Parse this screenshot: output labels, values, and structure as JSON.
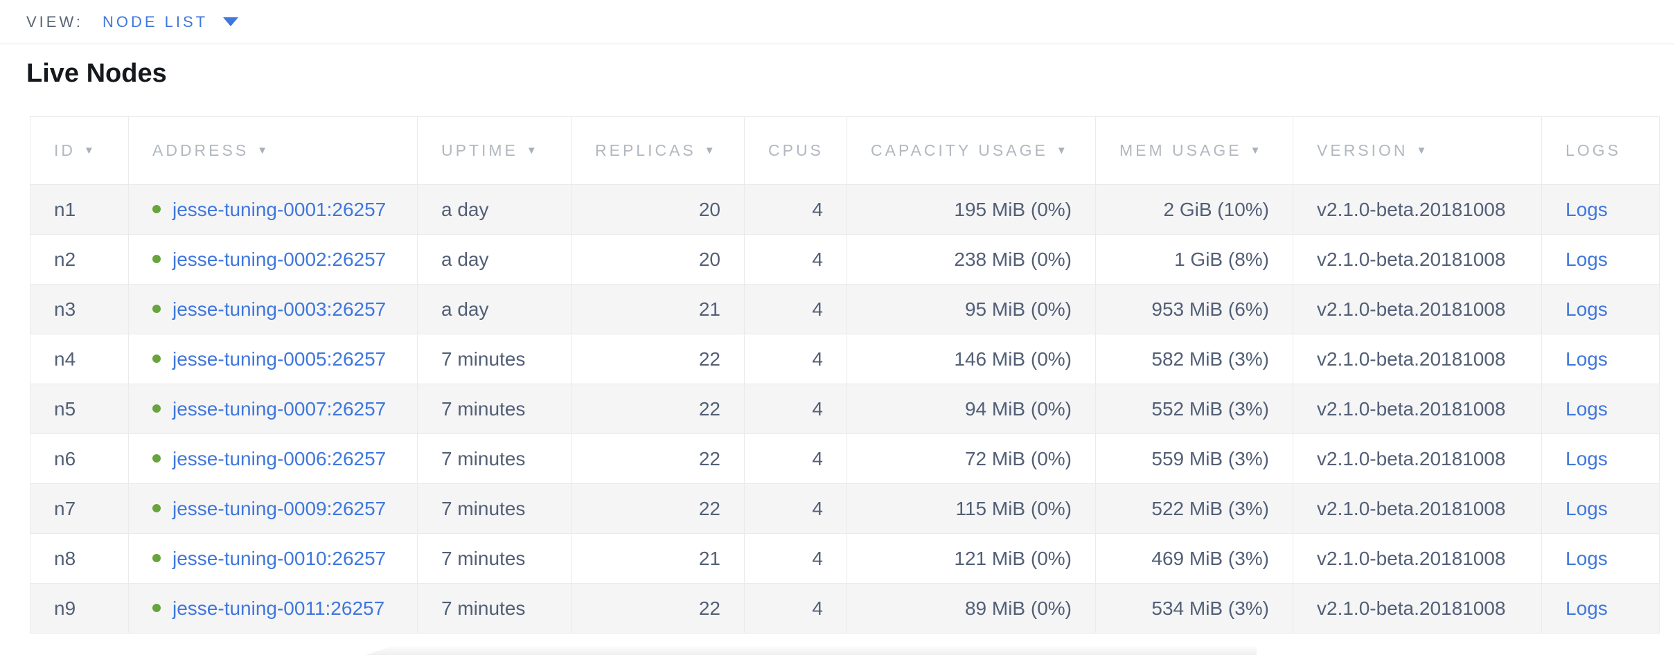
{
  "view_bar": {
    "label": "VIEW:",
    "selected": "NODE LIST"
  },
  "page": {
    "title": "Live Nodes"
  },
  "table": {
    "columns": [
      {
        "label": "ID",
        "sortable": true
      },
      {
        "label": "ADDRESS",
        "sortable": true
      },
      {
        "label": "UPTIME",
        "sortable": true
      },
      {
        "label": "REPLICAS",
        "sortable": true
      },
      {
        "label": "CPUS",
        "sortable": false
      },
      {
        "label": "CAPACITY USAGE",
        "sortable": true
      },
      {
        "label": "MEM USAGE",
        "sortable": true
      },
      {
        "label": "VERSION",
        "sortable": true
      },
      {
        "label": "LOGS",
        "sortable": false
      }
    ],
    "rows": [
      {
        "id": "n1",
        "status": "live",
        "address": "jesse-tuning-0001:26257",
        "uptime": "a day",
        "replicas": "20",
        "cpus": "4",
        "capacity_usage": "195 MiB (0%)",
        "mem_usage": "2 GiB (10%)",
        "version": "v2.1.0-beta.20181008",
        "logs_label": "Logs"
      },
      {
        "id": "n2",
        "status": "live",
        "address": "jesse-tuning-0002:26257",
        "uptime": "a day",
        "replicas": "20",
        "cpus": "4",
        "capacity_usage": "238 MiB (0%)",
        "mem_usage": "1 GiB (8%)",
        "version": "v2.1.0-beta.20181008",
        "logs_label": "Logs"
      },
      {
        "id": "n3",
        "status": "live",
        "address": "jesse-tuning-0003:26257",
        "uptime": "a day",
        "replicas": "21",
        "cpus": "4",
        "capacity_usage": "95 MiB (0%)",
        "mem_usage": "953 MiB (6%)",
        "version": "v2.1.0-beta.20181008",
        "logs_label": "Logs"
      },
      {
        "id": "n4",
        "status": "live",
        "address": "jesse-tuning-0005:26257",
        "uptime": "7 minutes",
        "replicas": "22",
        "cpus": "4",
        "capacity_usage": "146 MiB (0%)",
        "mem_usage": "582 MiB (3%)",
        "version": "v2.1.0-beta.20181008",
        "logs_label": "Logs"
      },
      {
        "id": "n5",
        "status": "live",
        "address": "jesse-tuning-0007:26257",
        "uptime": "7 minutes",
        "replicas": "22",
        "cpus": "4",
        "capacity_usage": "94 MiB (0%)",
        "mem_usage": "552 MiB (3%)",
        "version": "v2.1.0-beta.20181008",
        "logs_label": "Logs"
      },
      {
        "id": "n6",
        "status": "live",
        "address": "jesse-tuning-0006:26257",
        "uptime": "7 minutes",
        "replicas": "22",
        "cpus": "4",
        "capacity_usage": "72 MiB (0%)",
        "mem_usage": "559 MiB (3%)",
        "version": "v2.1.0-beta.20181008",
        "logs_label": "Logs"
      },
      {
        "id": "n7",
        "status": "live",
        "address": "jesse-tuning-0009:26257",
        "uptime": "7 minutes",
        "replicas": "22",
        "cpus": "4",
        "capacity_usage": "115 MiB (0%)",
        "mem_usage": "522 MiB (3%)",
        "version": "v2.1.0-beta.20181008",
        "logs_label": "Logs"
      },
      {
        "id": "n8",
        "status": "live",
        "address": "jesse-tuning-0010:26257",
        "uptime": "7 minutes",
        "replicas": "21",
        "cpus": "4",
        "capacity_usage": "121 MiB (0%)",
        "mem_usage": "469 MiB (3%)",
        "version": "v2.1.0-beta.20181008",
        "logs_label": "Logs"
      },
      {
        "id": "n9",
        "status": "live",
        "address": "jesse-tuning-0011:26257",
        "uptime": "7 minutes",
        "replicas": "22",
        "cpus": "4",
        "capacity_usage": "89 MiB (0%)",
        "mem_usage": "534 MiB (3%)",
        "version": "v2.1.0-beta.20181008",
        "logs_label": "Logs"
      }
    ]
  },
  "colors": {
    "link_blue": "#3f77dd",
    "live_green": "#68a43c",
    "row_stripe": "#f5f5f6",
    "header_text": "#b2b8bf",
    "body_text": "#525f76"
  }
}
